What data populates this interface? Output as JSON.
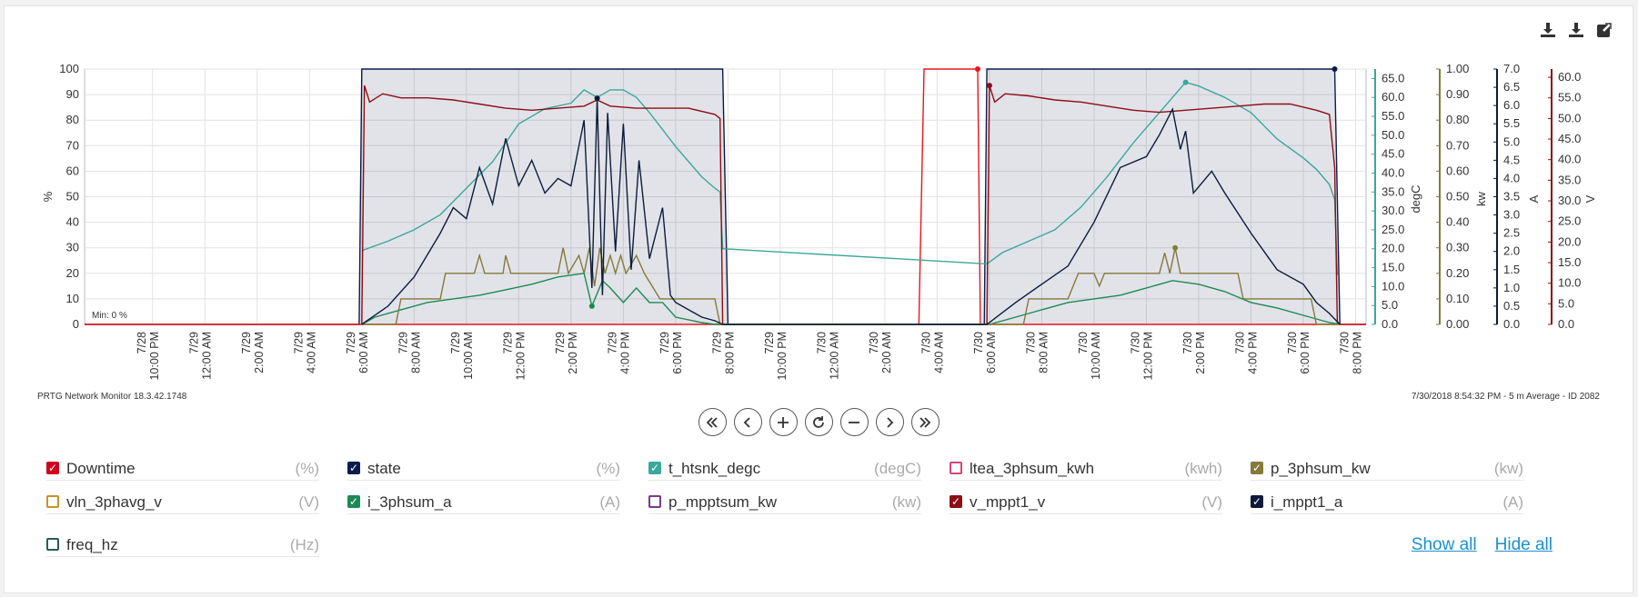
{
  "app": {
    "footer_left": "PRTG Network Monitor 18.3.42.1748",
    "footer_right": "7/30/2018 8:54:32 PM - 5 m Average - ID 2082",
    "min_label": "Min: 0 %"
  },
  "toolbar": {
    "download_png_icon": "download-icon",
    "download_csv_icon": "download-icon",
    "expand_icon": "external-link-icon"
  },
  "nav": [
    "first-page-icon",
    "previous-icon",
    "zoom-in-icon",
    "reset-icon",
    "zoom-out-icon",
    "next-icon",
    "last-page-icon"
  ],
  "legend": {
    "items": [
      {
        "name": "Downtime",
        "unit": "(%)",
        "color": "#d0021b",
        "checked": true
      },
      {
        "name": "state",
        "unit": "(%)",
        "color": "#0d1b4a",
        "checked": true
      },
      {
        "name": "t_htsnk_degc",
        "unit": "(degC)",
        "color": "#3aa89a",
        "checked": true
      },
      {
        "name": "ltea_3phsum_kwh",
        "unit": "(kwh)",
        "color": "#d6457a",
        "checked": false
      },
      {
        "name": "p_3phsum_kw",
        "unit": "(kw)",
        "color": "#847a3a",
        "checked": true
      },
      {
        "name": "vln_3phavg_v",
        "unit": "(V)",
        "color": "#c8922a",
        "checked": false
      },
      {
        "name": "i_3phsum_a",
        "unit": "(A)",
        "color": "#1c8a55",
        "checked": true
      },
      {
        "name": "p_mpptsum_kw",
        "unit": "(kw)",
        "color": "#7a3a8a",
        "checked": false
      },
      {
        "name": "v_mppt1_v",
        "unit": "(V)",
        "color": "#8b0f14",
        "checked": true
      },
      {
        "name": "i_mppt1_a",
        "unit": "(A)",
        "color": "#0d1b3a",
        "checked": true
      },
      {
        "name": "freq_hz",
        "unit": "(Hz)",
        "color": "#2a5a5a",
        "checked": false
      }
    ],
    "show_all": "Show all",
    "hide_all": "Hide all"
  },
  "chart_data": {
    "type": "line",
    "title": "",
    "xlabel": "",
    "x_ticks": [
      "7/28 10:00 PM",
      "7/29 12:00 AM",
      "7/29 2:00 AM",
      "7/29 4:00 AM",
      "7/29 6:00 AM",
      "7/29 8:00 AM",
      "7/29 10:00 AM",
      "7/29 12:00 PM",
      "7/29 2:00 PM",
      "7/29 4:00 PM",
      "7/29 6:00 PM",
      "7/29 8:00 PM",
      "7/29 10:00 PM",
      "7/30 12:00 AM",
      "7/30 2:00 AM",
      "7/30 4:00 AM",
      "7/30 6:00 AM",
      "7/30 8:00 AM",
      "7/30 10:00 AM",
      "7/30 12:00 PM",
      "7/30 2:00 PM",
      "7/30 4:00 PM",
      "7/30 6:00 PM",
      "7/30 8:00 PM"
    ],
    "x_unit": "hours after 7/28 10:00 PM",
    "xlim": [
      -2.6,
      46.4
    ],
    "grid": true,
    "axes": [
      {
        "id": "pct",
        "label": "%",
        "ticks": [
          0,
          10,
          20,
          30,
          40,
          50,
          60,
          70,
          80,
          90,
          100
        ],
        "ylim": [
          0,
          100
        ],
        "side": "left"
      },
      {
        "id": "degc",
        "label": "degC",
        "ticks": [
          0.0,
          5.0,
          10.0,
          15.0,
          20.0,
          25.0,
          30.0,
          35.0,
          40.0,
          45.0,
          50.0,
          55.0,
          60.0,
          65.0
        ],
        "ylim": [
          0,
          67.5
        ],
        "side": "right",
        "color": "#3aa89a"
      },
      {
        "id": "kw",
        "label": "kw",
        "ticks": [
          0.0,
          0.1,
          0.2,
          0.3,
          0.4,
          0.5,
          0.6,
          0.7,
          0.8,
          0.9,
          1.0
        ],
        "ylim": [
          0,
          1.0
        ],
        "side": "right",
        "color": "#847a3a"
      },
      {
        "id": "amp",
        "label": "A",
        "ticks": [
          0.0,
          0.5,
          1.0,
          1.5,
          2.0,
          2.5,
          3.0,
          3.5,
          4.0,
          4.5,
          5.0,
          5.5,
          6.0,
          6.5,
          7.0
        ],
        "ylim": [
          0,
          7.0
        ],
        "side": "right",
        "color": "#0d1b3a"
      },
      {
        "id": "volt",
        "label": "V",
        "ticks": [
          0.0,
          5.0,
          10.0,
          15.0,
          20.0,
          25.0,
          30.0,
          35.0,
          40.0,
          45.0,
          50.0,
          55.0,
          60.0
        ],
        "ylim": [
          0,
          62.0
        ],
        "side": "right",
        "color": "#8b0f14"
      }
    ],
    "series": [
      {
        "name": "Downtime",
        "axis": "pct",
        "color": "#e8151f",
        "points": [
          [
            -2.6,
            0
          ],
          [
            29.3,
            0
          ],
          [
            29.5,
            100
          ],
          [
            31.55,
            100
          ],
          [
            31.65,
            0
          ],
          [
            46.4,
            0
          ]
        ]
      },
      {
        "name": "state",
        "axis": "pct",
        "color": "#0d1b4a",
        "fill": "rgba(13,27,74,0.12)",
        "points": [
          [
            -2.6,
            0
          ],
          [
            7.9,
            0
          ],
          [
            8.0,
            100
          ],
          [
            21.8,
            100
          ],
          [
            22.0,
            0
          ],
          [
            31.8,
            0
          ],
          [
            31.9,
            100
          ],
          [
            45.2,
            100
          ],
          [
            45.4,
            0
          ],
          [
            46.4,
            0
          ]
        ]
      },
      {
        "name": "t_htsnk_degc",
        "axis": "degc",
        "color": "#3aa89a",
        "points": [
          [
            8.0,
            19.5
          ],
          [
            9,
            22
          ],
          [
            10,
            25
          ],
          [
            11,
            29
          ],
          [
            12,
            36
          ],
          [
            13,
            43
          ],
          [
            14,
            53
          ],
          [
            15,
            57
          ],
          [
            16,
            58.5
          ],
          [
            16.5,
            62
          ],
          [
            17,
            60
          ],
          [
            17.5,
            62
          ],
          [
            18,
            62
          ],
          [
            18.5,
            60
          ],
          [
            19,
            56
          ],
          [
            20,
            47
          ],
          [
            21,
            39
          ],
          [
            21.5,
            36
          ],
          [
            21.7,
            35
          ],
          [
            21.8,
            20
          ],
          [
            31.9,
            16
          ],
          [
            32.5,
            19
          ],
          [
            33.5,
            22
          ],
          [
            34.5,
            25
          ],
          [
            35.5,
            31
          ],
          [
            36.5,
            39
          ],
          [
            37.5,
            48
          ],
          [
            38.5,
            56
          ],
          [
            39,
            60
          ],
          [
            39.5,
            64
          ],
          [
            40,
            63
          ],
          [
            41,
            60
          ],
          [
            42,
            56
          ],
          [
            43,
            49
          ],
          [
            44,
            44
          ],
          [
            44.5,
            41
          ],
          [
            45.0,
            37
          ],
          [
            45.2,
            33
          ],
          [
            45.3,
            13
          ]
        ]
      },
      {
        "name": "p_3phsum_kw",
        "axis": "kw",
        "color": "#847a3a",
        "points": [
          [
            8.0,
            0
          ],
          [
            9.3,
            0
          ],
          [
            9.5,
            0.1
          ],
          [
            11.0,
            0.1
          ],
          [
            11.2,
            0.2
          ],
          [
            12.3,
            0.2
          ],
          [
            12.5,
            0.27
          ],
          [
            12.7,
            0.2
          ],
          [
            13.4,
            0.2
          ],
          [
            13.5,
            0.27
          ],
          [
            13.7,
            0.2
          ],
          [
            15.5,
            0.2
          ],
          [
            15.7,
            0.3
          ],
          [
            15.9,
            0.2
          ],
          [
            16.3,
            0.27
          ],
          [
            16.5,
            0.2
          ],
          [
            16.7,
            0.3
          ],
          [
            16.9,
            0.15
          ],
          [
            17.1,
            0.3
          ],
          [
            17.3,
            0.2
          ],
          [
            17.5,
            0.27
          ],
          [
            17.7,
            0.2
          ],
          [
            17.9,
            0.27
          ],
          [
            18.1,
            0.2
          ],
          [
            18.5,
            0.27
          ],
          [
            18.8,
            0.2
          ],
          [
            19.4,
            0.1
          ],
          [
            21.5,
            0.1
          ],
          [
            21.7,
            0
          ],
          [
            32.0,
            0
          ],
          [
            33.3,
            0
          ],
          [
            33.5,
            0.1
          ],
          [
            35.0,
            0.1
          ],
          [
            35.2,
            0.15
          ],
          [
            35.4,
            0.2
          ],
          [
            36.0,
            0.2
          ],
          [
            36.2,
            0.15
          ],
          [
            36.4,
            0.2
          ],
          [
            38.5,
            0.2
          ],
          [
            38.7,
            0.28
          ],
          [
            38.9,
            0.2
          ],
          [
            39.1,
            0.3
          ],
          [
            39.3,
            0.2
          ],
          [
            41.5,
            0.2
          ],
          [
            41.7,
            0.1
          ],
          [
            44.3,
            0.1
          ],
          [
            44.5,
            0
          ],
          [
            45.4,
            0
          ]
        ]
      },
      {
        "name": "i_3phsum_a",
        "axis": "amp",
        "color": "#1c8a55",
        "points": [
          [
            8.0,
            0
          ],
          [
            8.5,
            0.2
          ],
          [
            9.5,
            0.4
          ],
          [
            10.5,
            0.6
          ],
          [
            11.5,
            0.7
          ],
          [
            12.5,
            0.8
          ],
          [
            13.5,
            0.95
          ],
          [
            14.5,
            1.1
          ],
          [
            15.5,
            1.3
          ],
          [
            16.5,
            1.4
          ],
          [
            16.8,
            0.5
          ],
          [
            17.2,
            1.2
          ],
          [
            17.5,
            1.0
          ],
          [
            18.0,
            0.6
          ],
          [
            18.5,
            1.0
          ],
          [
            19.0,
            0.6
          ],
          [
            19.5,
            0.6
          ],
          [
            20.0,
            0.2
          ],
          [
            21.0,
            0.05
          ],
          [
            21.5,
            0
          ],
          [
            32.0,
            0
          ],
          [
            33.0,
            0.2
          ],
          [
            34.0,
            0.4
          ],
          [
            35.0,
            0.6
          ],
          [
            36.0,
            0.7
          ],
          [
            37.0,
            0.8
          ],
          [
            38.0,
            1.0
          ],
          [
            39.0,
            1.2
          ],
          [
            40.0,
            1.1
          ],
          [
            41.0,
            0.9
          ],
          [
            42.0,
            0.6
          ],
          [
            43.0,
            0.45
          ],
          [
            44.0,
            0.25
          ],
          [
            45.0,
            0.05
          ],
          [
            45.4,
            0
          ]
        ]
      },
      {
        "name": "v_mppt1_v",
        "axis": "volt",
        "color": "#8b0f14",
        "points": [
          [
            8.0,
            0
          ],
          [
            8.1,
            58
          ],
          [
            8.3,
            54
          ],
          [
            8.8,
            56
          ],
          [
            9.5,
            55
          ],
          [
            10.5,
            55
          ],
          [
            11.5,
            54.5
          ],
          [
            12.5,
            53.5
          ],
          [
            13.5,
            52.5
          ],
          [
            14.5,
            52
          ],
          [
            15.5,
            52.5
          ],
          [
            16.5,
            53
          ],
          [
            17.0,
            54.5
          ],
          [
            17.5,
            53
          ],
          [
            18.5,
            52.5
          ],
          [
            19.5,
            52.5
          ],
          [
            20.5,
            52.5
          ],
          [
            21.5,
            51
          ],
          [
            21.7,
            50
          ],
          [
            21.8,
            0
          ],
          [
            31.9,
            0
          ],
          [
            32.0,
            58
          ],
          [
            32.2,
            54
          ],
          [
            32.6,
            56
          ],
          [
            33.5,
            55.5
          ],
          [
            34.5,
            54.5
          ],
          [
            35.5,
            54
          ],
          [
            36.5,
            53
          ],
          [
            37.5,
            52
          ],
          [
            38.5,
            51.5
          ],
          [
            39.5,
            52
          ],
          [
            40.5,
            52.5
          ],
          [
            41.5,
            53
          ],
          [
            42.5,
            53.5
          ],
          [
            43.5,
            53.5
          ],
          [
            44.5,
            52
          ],
          [
            45.0,
            51
          ],
          [
            45.2,
            38
          ],
          [
            45.3,
            0
          ]
        ]
      },
      {
        "name": "i_mppt1_a",
        "axis": "amp",
        "color": "#0d1b3a",
        "points": [
          [
            8.0,
            0
          ],
          [
            9,
            0.5
          ],
          [
            10,
            1.3
          ],
          [
            11,
            2.5
          ],
          [
            11.5,
            3.2
          ],
          [
            12,
            2.9
          ],
          [
            12.5,
            4.3
          ],
          [
            13,
            3.3
          ],
          [
            13.5,
            5.1
          ],
          [
            14,
            3.8
          ],
          [
            14.5,
            4.5
          ],
          [
            15,
            3.6
          ],
          [
            15.5,
            4.0
          ],
          [
            16,
            3.8
          ],
          [
            16.5,
            5.6
          ],
          [
            16.8,
            1.0
          ],
          [
            17.0,
            6.2
          ],
          [
            17.2,
            0.8
          ],
          [
            17.4,
            5.8
          ],
          [
            17.7,
            2.0
          ],
          [
            18.0,
            5.5
          ],
          [
            18.3,
            1.5
          ],
          [
            18.6,
            4.5
          ],
          [
            19.0,
            1.8
          ],
          [
            19.5,
            3.2
          ],
          [
            19.8,
            0.8
          ],
          [
            20,
            0.6
          ],
          [
            21,
            0.2
          ],
          [
            21.5,
            0.1
          ],
          [
            21.8,
            0
          ],
          [
            31.9,
            0
          ],
          [
            33,
            0.6
          ],
          [
            34,
            1.1
          ],
          [
            35,
            1.6
          ],
          [
            36,
            2.8
          ],
          [
            37,
            4.3
          ],
          [
            38,
            4.6
          ],
          [
            38.5,
            5.2
          ],
          [
            39,
            5.9
          ],
          [
            39.3,
            4.8
          ],
          [
            39.5,
            5.3
          ],
          [
            39.8,
            3.6
          ],
          [
            40.5,
            4.2
          ],
          [
            41,
            3.6
          ],
          [
            42,
            2.5
          ],
          [
            43,
            1.5
          ],
          [
            44,
            1.1
          ],
          [
            44.5,
            0.6
          ],
          [
            45,
            0.3
          ],
          [
            45.4,
            0
          ]
        ]
      }
    ],
    "markers": [
      {
        "series": "i_mppt1_a",
        "x": 17.0
      },
      {
        "series": "t_htsnk_degc",
        "x": 39.5
      },
      {
        "series": "p_3phsum_kw",
        "x": 39.1
      },
      {
        "series": "i_3phsum_a",
        "x": 16.8
      },
      {
        "series": "v_mppt1_v",
        "x": 32.0
      },
      {
        "series": "Downtime",
        "x": 31.55
      },
      {
        "series": "state",
        "x": 45.2
      }
    ]
  }
}
